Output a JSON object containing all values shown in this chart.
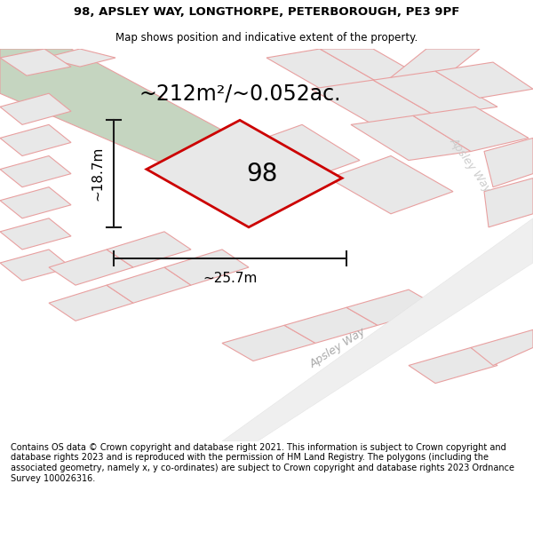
{
  "title_line1": "98, APSLEY WAY, LONGTHORPE, PETERBOROUGH, PE3 9PF",
  "title_line2": "Map shows position and indicative extent of the property.",
  "footer_text": "Contains OS data © Crown copyright and database right 2021. This information is subject to Crown copyright and database rights 2023 and is reproduced with the permission of HM Land Registry. The polygons (including the associated geometry, namely x, y co-ordinates) are subject to Crown copyright and database rights 2023 Ordnance Survey 100026316.",
  "area_text": "~212m²/~0.052ac.",
  "label_98": "98",
  "dim_height": "~18.7m",
  "dim_width": "~25.7m",
  "road_label_bottom": "Apsley Way",
  "road_label_right": "Apsley Way",
  "bg_color": "#ffffff",
  "map_bg": "#f2f2f2",
  "green_strip_color": "#c5d5c0",
  "parcel_fill": "#e8e8e8",
  "parcel_edge": "#e8a0a0",
  "highlight_fill": "#e8e8e8",
  "highlight_edge": "#cc0000",
  "dim_line_color": "#1a1a1a",
  "title_fontsize": 9.5,
  "subtitle_fontsize": 8.5,
  "footer_fontsize": 7.0,
  "area_fontsize": 17,
  "label_fontsize": 20,
  "dim_fontsize": 11
}
